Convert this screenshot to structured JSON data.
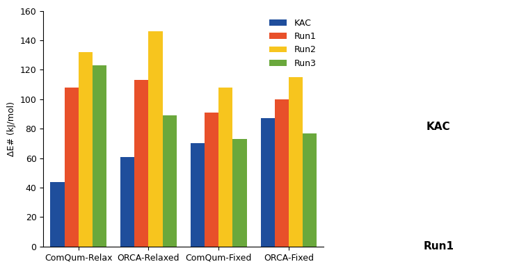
{
  "chart_data": {
    "type": "bar",
    "y_label": "ΔE# (kJ/mol)",
    "categories": [
      "ComQum-Relax",
      "ORCA-Relaxed",
      "ComQum-Fixed",
      "ORCA-Fixed"
    ],
    "series": [
      {
        "name": "KAC",
        "color": "#1f4e9c",
        "values": [
          44,
          61,
          70,
          87
        ]
      },
      {
        "name": "Run1",
        "color": "#e8502a",
        "values": [
          108,
          113,
          91,
          100
        ]
      },
      {
        "name": "Run2",
        "color": "#f7c51e",
        "values": [
          132,
          146,
          108,
          115
        ]
      },
      {
        "name": "Run3",
        "color": "#6aa83c",
        "values": [
          123,
          89,
          73,
          77
        ]
      }
    ],
    "ylim": [
      0,
      160
    ],
    "yticks": [
      0,
      20,
      40,
      60,
      80,
      100,
      120,
      140,
      160
    ],
    "grid": false,
    "legend": "upper right",
    "annotations": [
      "KAC",
      "Run1"
    ]
  }
}
